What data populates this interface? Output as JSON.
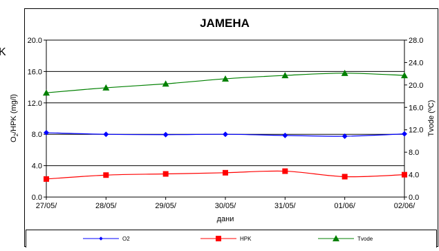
{
  "chart_data": {
    "type": "line",
    "title": "ЈАМЕНА",
    "xlabel": "дани",
    "ylabel_left_main": "O",
    "ylabel_left_sub": "2",
    "ylabel_left_rest": "/HPK (mg/l)",
    "ylabel_right": "Tvode (ºC)",
    "categories": [
      "27/05/",
      "28/05/",
      "29/05/",
      "30/05/",
      "31/05/",
      "01/06/",
      "02/06/"
    ],
    "y_left": {
      "min": 0,
      "max": 20,
      "ticks": [
        "0.0",
        "4.0",
        "8.0",
        "12.0",
        "16.0",
        "20.0"
      ],
      "tick_values": [
        0,
        4,
        8,
        12,
        16,
        20
      ]
    },
    "y_right": {
      "min": 0,
      "max": 28,
      "ticks": [
        "0.0",
        "4.0",
        "8.0",
        "12.0",
        "16.0",
        "20.0",
        "24.0",
        "28.0"
      ],
      "tick_values": [
        0,
        4,
        8,
        12,
        16,
        20,
        24,
        28
      ]
    },
    "grid": "horizontal",
    "legend_position": "bottom",
    "cut_off_left_label": "K",
    "series": [
      {
        "name": "O2",
        "axis": "left",
        "color": "#0000ff",
        "marker": "diamond",
        "values": [
          8.2,
          8.0,
          7.95,
          8.0,
          7.85,
          7.75,
          8.05
        ]
      },
      {
        "name": "HPK",
        "axis": "left",
        "color": "#ff0000",
        "marker": "square",
        "values": [
          2.3,
          2.8,
          2.95,
          3.1,
          3.3,
          2.6,
          2.85
        ]
      },
      {
        "name": "Tvode",
        "axis": "right",
        "color": "#008000",
        "marker": "triangle",
        "values": [
          18.6,
          19.5,
          20.2,
          21.1,
          21.7,
          22.1,
          21.7
        ]
      }
    ]
  }
}
